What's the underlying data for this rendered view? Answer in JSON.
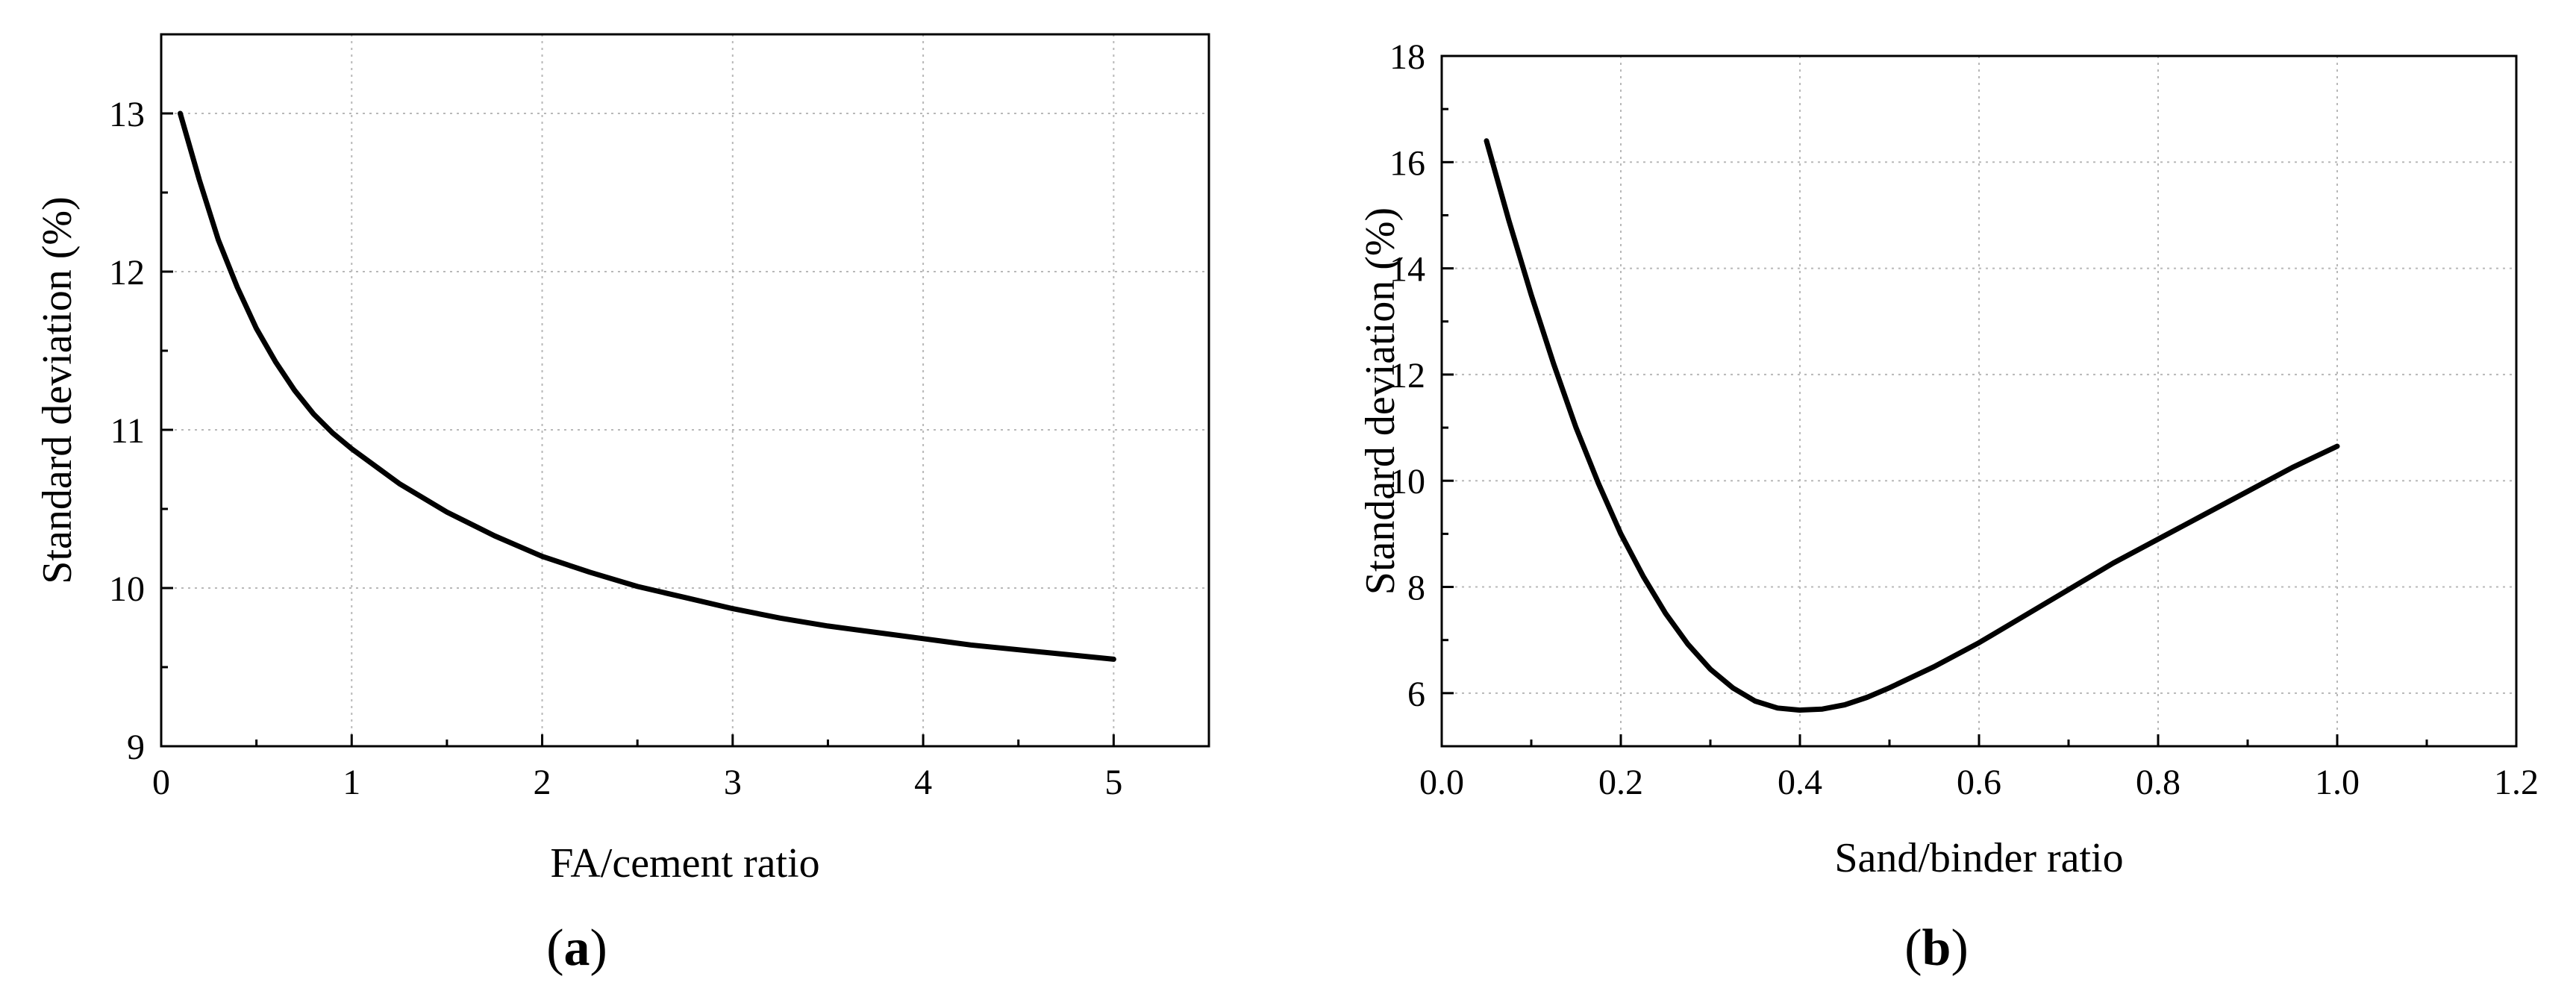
{
  "chart_data": [
    {
      "type": "line",
      "panel_label": "a",
      "xlabel": "FA/cement ratio",
      "ylabel": "Standard deviation (%)",
      "xlim": [
        0,
        5.5
      ],
      "ylim": [
        9,
        13.5
      ],
      "xticks": [
        0,
        1,
        2,
        3,
        4,
        5
      ],
      "xtick_labels": [
        "0",
        "1",
        "2",
        "3",
        "4",
        "5"
      ],
      "yticks": [
        9,
        10,
        11,
        12,
        13
      ],
      "ytick_labels": [
        "9",
        "10",
        "11",
        "12",
        "13"
      ],
      "grid": true,
      "legend": "none",
      "series": [
        {
          "color": "#000000",
          "x": [
            0.1,
            0.2,
            0.3,
            0.4,
            0.5,
            0.6,
            0.7,
            0.8,
            0.9,
            1.0,
            1.25,
            1.5,
            1.75,
            2.0,
            2.25,
            2.5,
            2.75,
            3.0,
            3.25,
            3.5,
            3.75,
            4.0,
            4.25,
            4.5,
            4.75,
            5.0
          ],
          "y": [
            13.0,
            12.58,
            12.2,
            11.9,
            11.64,
            11.43,
            11.25,
            11.1,
            10.98,
            10.88,
            10.66,
            10.48,
            10.33,
            10.2,
            10.1,
            10.01,
            9.94,
            9.87,
            9.81,
            9.76,
            9.72,
            9.68,
            9.64,
            9.61,
            9.58,
            9.55
          ]
        }
      ]
    },
    {
      "type": "line",
      "panel_label": "b",
      "xlabel": "Sand/binder ratio",
      "ylabel": "Standard deviation (%)",
      "xlim": [
        0.0,
        1.2
      ],
      "ylim": [
        5,
        18
      ],
      "xticks": [
        0.0,
        0.2,
        0.4,
        0.6,
        0.8,
        1.0,
        1.2
      ],
      "xtick_labels": [
        "0.0",
        "0.2",
        "0.4",
        "0.6",
        "0.8",
        "1.0",
        "1.2"
      ],
      "yticks": [
        6,
        8,
        10,
        12,
        14,
        16,
        18
      ],
      "ytick_labels": [
        "6",
        "8",
        "10",
        "12",
        "14",
        "16",
        "18"
      ],
      "grid": true,
      "legend": "none",
      "series": [
        {
          "color": "#000000",
          "x": [
            0.05,
            0.075,
            0.1,
            0.125,
            0.15,
            0.175,
            0.2,
            0.225,
            0.25,
            0.275,
            0.3,
            0.325,
            0.35,
            0.375,
            0.4,
            0.425,
            0.45,
            0.475,
            0.5,
            0.55,
            0.6,
            0.65,
            0.7,
            0.75,
            0.8,
            0.85,
            0.9,
            0.95,
            1.0
          ],
          "y": [
            16.4,
            14.9,
            13.5,
            12.2,
            11.0,
            9.95,
            9.0,
            8.2,
            7.5,
            6.92,
            6.45,
            6.1,
            5.85,
            5.72,
            5.68,
            5.7,
            5.78,
            5.92,
            6.1,
            6.5,
            6.95,
            7.45,
            7.95,
            8.45,
            8.9,
            9.35,
            9.8,
            10.25,
            10.65
          ]
        }
      ]
    }
  ]
}
